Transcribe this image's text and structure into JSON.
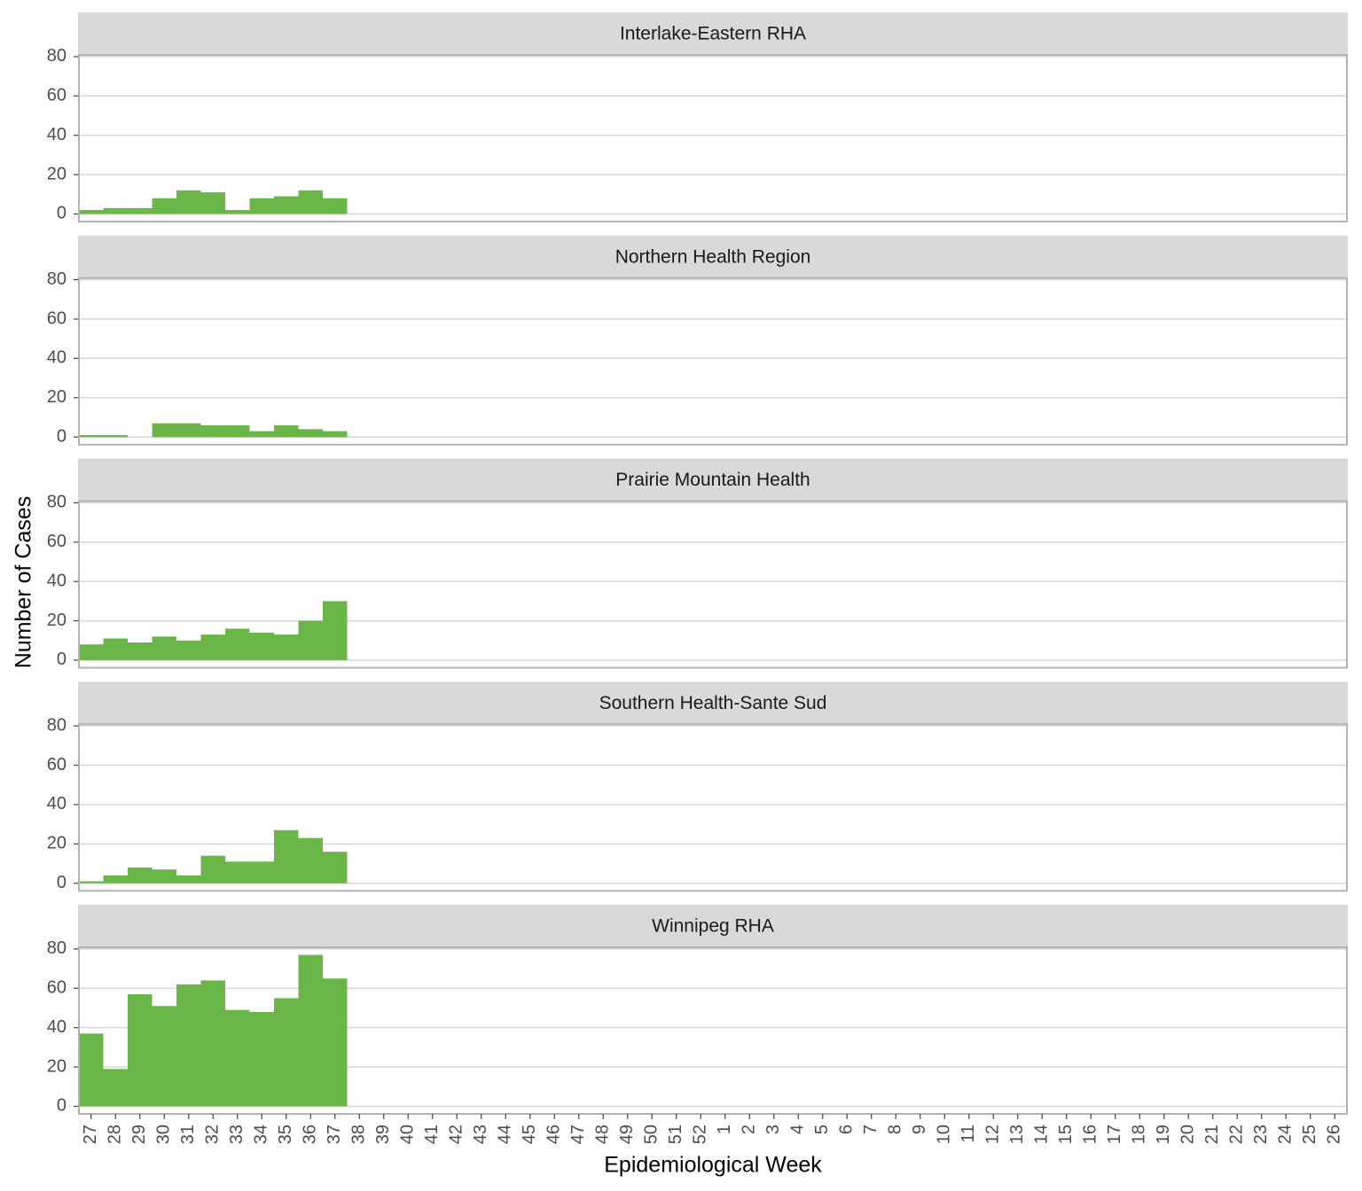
{
  "chart_data": {
    "type": "bar",
    "x_label": "Epidemiological Week",
    "y_label": "Number of Cases",
    "categories": [
      "27",
      "28",
      "29",
      "30",
      "31",
      "32",
      "33",
      "34",
      "35",
      "36",
      "37",
      "38",
      "39",
      "40",
      "41",
      "42",
      "43",
      "44",
      "45",
      "46",
      "47",
      "48",
      "49",
      "50",
      "51",
      "52",
      "1",
      "2",
      "3",
      "4",
      "5",
      "6",
      "7",
      "8",
      "9",
      "10",
      "11",
      "12",
      "13",
      "14",
      "15",
      "16",
      "17",
      "18",
      "19",
      "20",
      "21",
      "22",
      "23",
      "24",
      "25",
      "26"
    ],
    "ylim": [
      -3.85,
      80.85
    ],
    "yticks": [
      0,
      20,
      40,
      60,
      80
    ],
    "grid": true,
    "color": "#63b23f",
    "facets": [
      {
        "title": "Interlake-Eastern RHA",
        "values": [
          2,
          3,
          3,
          8,
          12,
          11,
          2,
          8,
          9,
          12,
          8,
          null,
          null,
          null,
          null,
          null,
          null,
          null,
          null,
          null,
          null,
          null,
          null,
          null,
          null,
          null,
          null,
          null,
          null,
          null,
          null,
          null,
          null,
          null,
          null,
          null,
          null,
          null,
          null,
          null,
          null,
          null,
          null,
          null,
          null,
          null,
          null,
          null,
          null,
          null,
          null,
          null
        ]
      },
      {
        "title": "Northern Health Region",
        "values": [
          1,
          1,
          0,
          7,
          7,
          6,
          6,
          3,
          6,
          4,
          3,
          null,
          null,
          null,
          null,
          null,
          null,
          null,
          null,
          null,
          null,
          null,
          null,
          null,
          null,
          null,
          null,
          null,
          null,
          null,
          null,
          null,
          null,
          null,
          null,
          null,
          null,
          null,
          null,
          null,
          null,
          null,
          null,
          null,
          null,
          null,
          null,
          null,
          null,
          null,
          null,
          null
        ]
      },
      {
        "title": "Prairie Mountain Health",
        "values": [
          8,
          11,
          9,
          12,
          10,
          13,
          16,
          14,
          13,
          20,
          30,
          null,
          null,
          null,
          null,
          null,
          null,
          null,
          null,
          null,
          null,
          null,
          null,
          null,
          null,
          null,
          null,
          null,
          null,
          null,
          null,
          null,
          null,
          null,
          null,
          null,
          null,
          null,
          null,
          null,
          null,
          null,
          null,
          null,
          null,
          null,
          null,
          null,
          null,
          null,
          null,
          null
        ]
      },
      {
        "title": "Southern Health-Sante Sud",
        "values": [
          1,
          4,
          8,
          7,
          4,
          14,
          11,
          11,
          27,
          23,
          16,
          null,
          null,
          null,
          null,
          null,
          null,
          null,
          null,
          null,
          null,
          null,
          null,
          null,
          null,
          null,
          null,
          null,
          null,
          null,
          null,
          null,
          null,
          null,
          null,
          null,
          null,
          null,
          null,
          null,
          null,
          null,
          null,
          null,
          null,
          null,
          null,
          null,
          null,
          null,
          null,
          null
        ]
      },
      {
        "title": "Winnipeg RHA",
        "values": [
          37,
          19,
          57,
          51,
          62,
          64,
          49,
          48,
          55,
          77,
          65,
          null,
          null,
          null,
          null,
          null,
          null,
          null,
          null,
          null,
          null,
          null,
          null,
          null,
          null,
          null,
          null,
          null,
          null,
          null,
          null,
          null,
          null,
          null,
          null,
          null,
          null,
          null,
          null,
          null,
          null,
          null,
          null,
          null,
          null,
          null,
          null,
          null,
          null,
          null,
          null,
          null
        ]
      }
    ]
  }
}
